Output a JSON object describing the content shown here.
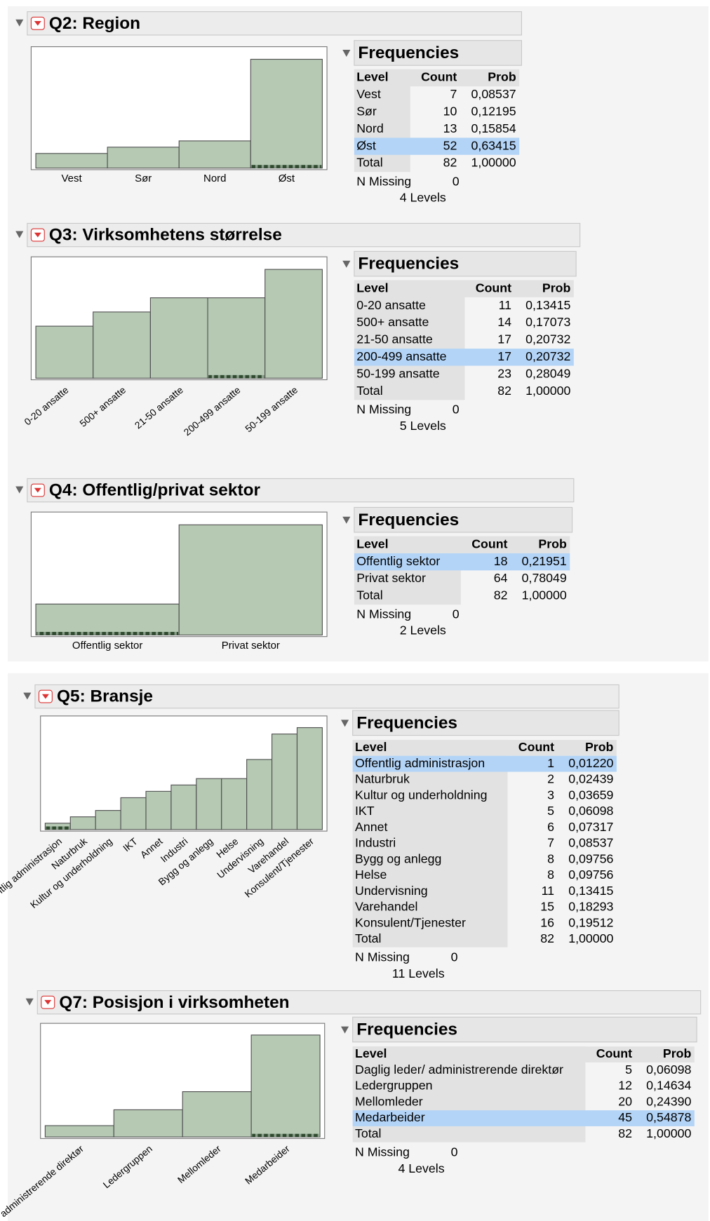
{
  "sections": [
    {
      "title": "Q2: Region",
      "frequencies_title": "Frequencies",
      "columns": [
        "Level",
        "Count",
        "Prob"
      ],
      "selected": 3,
      "rotate_labels": false,
      "rows": [
        {
          "level": "Vest",
          "count": 7,
          "prob": "0,08537"
        },
        {
          "level": "Sør",
          "count": 10,
          "prob": "0,12195"
        },
        {
          "level": "Nord",
          "count": 13,
          "prob": "0,15854"
        },
        {
          "level": "Øst",
          "count": 52,
          "prob": "0,63415"
        }
      ],
      "total": {
        "label": "Total",
        "count": 82,
        "prob": "1,00000"
      },
      "n_missing": {
        "label": "N Missing",
        "value": 0
      },
      "levels": "4 Levels"
    },
    {
      "title": "Q3: Virksomhetens størrelse",
      "frequencies_title": "Frequencies",
      "columns": [
        "Level",
        "Count",
        "Prob"
      ],
      "selected": 3,
      "rotate_labels": true,
      "rows": [
        {
          "level": "0-20 ansatte",
          "count": 11,
          "prob": "0,13415"
        },
        {
          "level": "500+ ansatte",
          "count": 14,
          "prob": "0,17073"
        },
        {
          "level": "21-50 ansatte",
          "count": 17,
          "prob": "0,20732"
        },
        {
          "level": "200-499 ansatte",
          "count": 17,
          "prob": "0,20732"
        },
        {
          "level": "50-199 ansatte",
          "count": 23,
          "prob": "0,28049"
        }
      ],
      "total": {
        "label": "Total",
        "count": 82,
        "prob": "1,00000"
      },
      "n_missing": {
        "label": "N Missing",
        "value": 0
      },
      "levels": "5 Levels"
    },
    {
      "title": "Q4: Offentlig/privat sektor",
      "frequencies_title": "Frequencies",
      "columns": [
        "Level",
        "Count",
        "Prob"
      ],
      "selected": 0,
      "rotate_labels": false,
      "rows": [
        {
          "level": "Offentlig sektor",
          "count": 18,
          "prob": "0,21951"
        },
        {
          "level": "Privat sektor",
          "count": 64,
          "prob": "0,78049"
        }
      ],
      "total": {
        "label": "Total",
        "count": 82,
        "prob": "1,00000"
      },
      "n_missing": {
        "label": "N Missing",
        "value": 0
      },
      "levels": "2 Levels"
    },
    {
      "title": "Q5: Bransje",
      "frequencies_title": "Frequencies",
      "columns": [
        "Level",
        "Count",
        "Prob"
      ],
      "selected": 0,
      "rotate_labels": true,
      "rows": [
        {
          "level": "Offentlig administrasjon",
          "count": 1,
          "prob": "0,01220"
        },
        {
          "level": "Naturbruk",
          "count": 2,
          "prob": "0,02439"
        },
        {
          "level": "Kultur og underholdning",
          "count": 3,
          "prob": "0,03659"
        },
        {
          "level": "IKT",
          "count": 5,
          "prob": "0,06098"
        },
        {
          "level": "Annet",
          "count": 6,
          "prob": "0,07317"
        },
        {
          "level": "Industri",
          "count": 7,
          "prob": "0,08537"
        },
        {
          "level": "Bygg og anlegg",
          "count": 8,
          "prob": "0,09756"
        },
        {
          "level": "Helse",
          "count": 8,
          "prob": "0,09756"
        },
        {
          "level": "Undervisning",
          "count": 11,
          "prob": "0,13415"
        },
        {
          "level": "Varehandel",
          "count": 15,
          "prob": "0,18293"
        },
        {
          "level": "Konsulent/Tjenester",
          "count": 16,
          "prob": "0,19512"
        }
      ],
      "total": {
        "label": "Total",
        "count": 82,
        "prob": "1,00000"
      },
      "n_missing": {
        "label": "N Missing",
        "value": 0
      },
      "levels": "11 Levels"
    },
    {
      "title": "Q7: Posisjon i virksomheten",
      "frequencies_title": "Frequencies",
      "columns": [
        "Level",
        "Count",
        "Prob"
      ],
      "selected": 3,
      "rotate_labels": true,
      "rows": [
        {
          "level": "Daglig leder/ administrerende direktør",
          "count": 5,
          "prob": "0,06098"
        },
        {
          "level": "Ledergruppen",
          "count": 12,
          "prob": "0,14634"
        },
        {
          "level": "Mellomleder",
          "count": 20,
          "prob": "0,24390"
        },
        {
          "level": "Medarbeider",
          "count": 45,
          "prob": "0,54878"
        }
      ],
      "total": {
        "label": "Total",
        "count": 82,
        "prob": "1,00000"
      },
      "n_missing": {
        "label": "N Missing",
        "value": 0
      },
      "levels": "4 Levels"
    }
  ]
}
